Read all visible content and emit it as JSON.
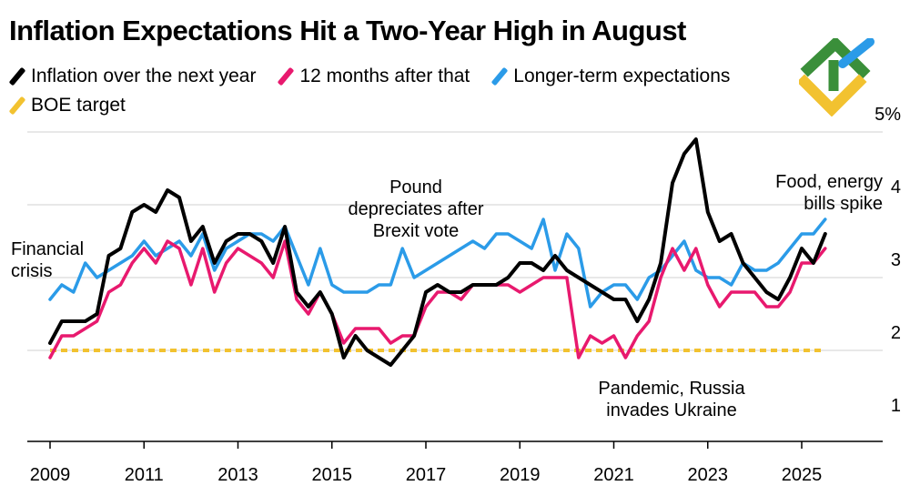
{
  "title": "Inflation Expectations Hit a Two-Year High in August",
  "legend": [
    {
      "label": "Inflation over the next year",
      "color": "#000000"
    },
    {
      "label": "12 months after that",
      "color": "#e8196e"
    },
    {
      "label": "Longer-term expectations",
      "color": "#2b9be8"
    },
    {
      "label": "BOE target",
      "color": "#f2c230"
    }
  ],
  "logo": {
    "name": "brand-logo",
    "colors": [
      "#3a8f3a",
      "#2b9be8",
      "#f2c230"
    ]
  },
  "chart_data": {
    "type": "line",
    "title": "Inflation Expectations Hit a Two-Year High in August",
    "xlabel": "",
    "ylabel": "",
    "xlim": [
      2009,
      2026.8
    ],
    "ylim": [
      0.75,
      5.2
    ],
    "x_ticks": [
      2009,
      2011,
      2013,
      2015,
      2017,
      2019,
      2021,
      2023,
      2025
    ],
    "x_tick_labels": [
      "2009",
      "2011",
      "2013",
      "2015",
      "2017",
      "2019",
      "2021",
      "2023",
      "2025"
    ],
    "y_ticks": [
      1,
      2,
      3,
      4,
      5
    ],
    "y_tick_labels": [
      "1",
      "2",
      "3",
      "4",
      "5%"
    ],
    "gridlines": "horizontal",
    "series": [
      {
        "name": "Inflation over the next year",
        "color": "#000000",
        "x": [
          2009,
          2009.25,
          2009.5,
          2009.75,
          2010,
          2010.25,
          2010.5,
          2010.75,
          2011,
          2011.25,
          2011.5,
          2011.75,
          2012,
          2012.25,
          2012.5,
          2012.75,
          2013,
          2013.25,
          2013.5,
          2013.75,
          2014,
          2014.25,
          2014.5,
          2014.75,
          2015,
          2015.25,
          2015.5,
          2015.75,
          2016,
          2016.25,
          2016.5,
          2016.75,
          2017,
          2017.25,
          2017.5,
          2017.75,
          2018,
          2018.25,
          2018.5,
          2018.75,
          2019,
          2019.25,
          2019.5,
          2019.75,
          2020,
          2020.25,
          2020.5,
          2020.75,
          2021,
          2021.25,
          2021.5,
          2021.75,
          2022,
          2022.25,
          2022.5,
          2022.75,
          2023,
          2023.25,
          2023.5,
          2023.75,
          2024,
          2024.25,
          2024.5,
          2024.75,
          2025,
          2025.25,
          2025.5
        ],
        "values": [
          2.1,
          2.4,
          2.4,
          2.4,
          2.5,
          3.3,
          3.4,
          3.9,
          4.0,
          3.9,
          4.2,
          4.1,
          3.5,
          3.7,
          3.2,
          3.5,
          3.6,
          3.6,
          3.5,
          3.2,
          3.7,
          2.8,
          2.6,
          2.8,
          2.5,
          1.9,
          2.2,
          2.0,
          1.9,
          1.8,
          2.0,
          2.2,
          2.8,
          2.9,
          2.8,
          2.8,
          2.9,
          2.9,
          2.9,
          3.0,
          3.2,
          3.2,
          3.1,
          3.3,
          3.1,
          3.0,
          2.9,
          2.8,
          2.7,
          2.7,
          2.4,
          2.7,
          3.2,
          4.3,
          4.7,
          4.9,
          3.9,
          3.5,
          3.6,
          3.2,
          3.0,
          2.8,
          2.7,
          3.0,
          3.4,
          3.2,
          3.6
        ]
      },
      {
        "name": "12 months after that",
        "color": "#e8196e",
        "x": [
          2009,
          2009.25,
          2009.5,
          2009.75,
          2010,
          2010.25,
          2010.5,
          2010.75,
          2011,
          2011.25,
          2011.5,
          2011.75,
          2012,
          2012.25,
          2012.5,
          2012.75,
          2013,
          2013.25,
          2013.5,
          2013.75,
          2014,
          2014.25,
          2014.5,
          2014.75,
          2015,
          2015.25,
          2015.5,
          2015.75,
          2016,
          2016.25,
          2016.5,
          2016.75,
          2017,
          2017.25,
          2017.5,
          2017.75,
          2018,
          2018.25,
          2018.5,
          2018.75,
          2019,
          2019.25,
          2019.5,
          2019.75,
          2020,
          2020.25,
          2020.5,
          2020.75,
          2021,
          2021.25,
          2021.5,
          2021.75,
          2022,
          2022.25,
          2022.5,
          2022.75,
          2023,
          2023.25,
          2023.5,
          2023.75,
          2024,
          2024.25,
          2024.5,
          2024.75,
          2025,
          2025.25,
          2025.5
        ],
        "values": [
          1.9,
          2.2,
          2.2,
          2.3,
          2.4,
          2.8,
          2.9,
          3.2,
          3.4,
          3.2,
          3.5,
          3.4,
          2.9,
          3.4,
          2.8,
          3.2,
          3.4,
          3.3,
          3.2,
          3.0,
          3.5,
          2.7,
          2.5,
          2.8,
          2.5,
          2.1,
          2.3,
          2.3,
          2.3,
          2.1,
          2.2,
          2.2,
          2.6,
          2.8,
          2.8,
          2.7,
          2.9,
          2.9,
          2.9,
          2.9,
          2.8,
          2.9,
          3.0,
          3.0,
          3.0,
          1.9,
          2.2,
          2.1,
          2.2,
          1.9,
          2.2,
          2.4,
          3.0,
          3.4,
          3.1,
          3.4,
          2.9,
          2.6,
          2.8,
          2.8,
          2.8,
          2.6,
          2.6,
          2.8,
          3.2,
          3.2,
          3.4
        ]
      },
      {
        "name": "Longer-term expectations",
        "color": "#2b9be8",
        "x": [
          2009,
          2009.25,
          2009.5,
          2009.75,
          2010,
          2010.25,
          2010.5,
          2010.75,
          2011,
          2011.25,
          2011.5,
          2011.75,
          2012,
          2012.25,
          2012.5,
          2012.75,
          2013,
          2013.25,
          2013.5,
          2013.75,
          2014,
          2014.25,
          2014.5,
          2014.75,
          2015,
          2015.25,
          2015.5,
          2015.75,
          2016,
          2016.25,
          2016.5,
          2016.75,
          2017,
          2017.25,
          2017.5,
          2017.75,
          2018,
          2018.25,
          2018.5,
          2018.75,
          2019,
          2019.25,
          2019.5,
          2019.75,
          2020,
          2020.25,
          2020.5,
          2020.75,
          2021,
          2021.25,
          2021.5,
          2021.75,
          2022,
          2022.25,
          2022.5,
          2022.75,
          2023,
          2023.25,
          2023.5,
          2023.75,
          2024,
          2024.25,
          2024.5,
          2024.75,
          2025,
          2025.25,
          2025.5
        ],
        "values": [
          2.7,
          2.9,
          2.8,
          3.2,
          3.0,
          3.1,
          3.2,
          3.3,
          3.5,
          3.3,
          3.4,
          3.5,
          3.3,
          3.6,
          3.1,
          3.4,
          3.5,
          3.6,
          3.6,
          3.5,
          3.7,
          3.3,
          2.9,
          3.4,
          2.9,
          2.8,
          2.8,
          2.8,
          2.9,
          2.9,
          3.4,
          3.0,
          3.1,
          3.2,
          3.3,
          3.4,
          3.5,
          3.4,
          3.6,
          3.6,
          3.5,
          3.4,
          3.8,
          3.1,
          3.6,
          3.4,
          2.6,
          2.8,
          2.9,
          2.9,
          2.7,
          3.0,
          3.1,
          3.3,
          3.5,
          3.1,
          3.0,
          3.0,
          2.9,
          3.2,
          3.1,
          3.1,
          3.2,
          3.4,
          3.6,
          3.6,
          3.8
        ]
      },
      {
        "name": "BOE target",
        "color": "#f2c230",
        "style": "dashed",
        "x": [
          2009,
          2025.5
        ],
        "values": [
          2.0,
          2.0
        ]
      }
    ],
    "annotations": [
      {
        "id": "financial-crisis",
        "lines": [
          "Financial",
          "crisis"
        ]
      },
      {
        "id": "brexit",
        "lines": [
          "Pound",
          "depreciates after",
          "Brexit vote"
        ]
      },
      {
        "id": "food-energy",
        "lines": [
          "Food, energy",
          "bills spike"
        ]
      },
      {
        "id": "pandemic",
        "lines": [
          "Pandemic, Russia",
          "invades Ukraine"
        ]
      }
    ]
  }
}
